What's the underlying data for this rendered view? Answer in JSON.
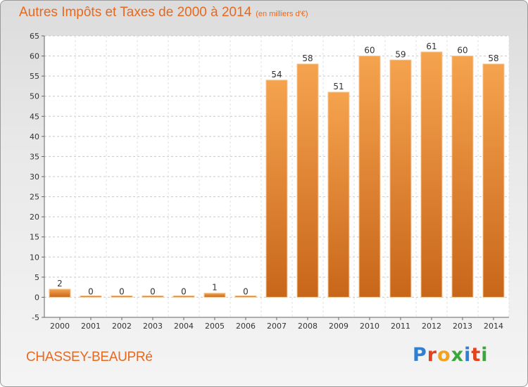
{
  "header": {
    "title": "Autres Impôts et Taxes de 2000 à 2014",
    "unit": "(en milliers d'€)"
  },
  "footer": {
    "commune": "CHASSEY-BEAUPRé",
    "logo": [
      "P",
      "r",
      "o",
      "x",
      "i",
      "t",
      "i"
    ]
  },
  "colors": {
    "accent": "#e8681e",
    "bar_light": "#f5a34e",
    "bar_dark": "#c8661a",
    "logo": [
      "#2f7fd2",
      "#e2421c",
      "#f1a21f",
      "#3aa63c",
      "#2f7fd2",
      "#e2421c",
      "#3aa63c"
    ]
  },
  "chart_data": {
    "type": "bar",
    "categories": [
      "2000",
      "2001",
      "2002",
      "2003",
      "2004",
      "2005",
      "2006",
      "2007",
      "2008",
      "2009",
      "2010",
      "2011",
      "2012",
      "2013",
      "2014"
    ],
    "values": [
      2,
      0,
      0,
      0,
      0,
      1,
      0,
      54,
      58,
      51,
      60,
      59,
      61,
      60,
      58
    ],
    "data_labels": [
      "2",
      "0",
      "0",
      "0",
      "0",
      "1",
      "0",
      "54",
      "58",
      "51",
      "60",
      "59",
      "61",
      "60",
      "58"
    ],
    "yticks": [
      "-5",
      "0",
      "5",
      "10",
      "15",
      "20",
      "25",
      "30",
      "35",
      "40",
      "45",
      "50",
      "55",
      "60",
      "65"
    ],
    "ylim": [
      -5,
      65
    ],
    "grid": "horizontal-dashed",
    "legend": "none"
  }
}
